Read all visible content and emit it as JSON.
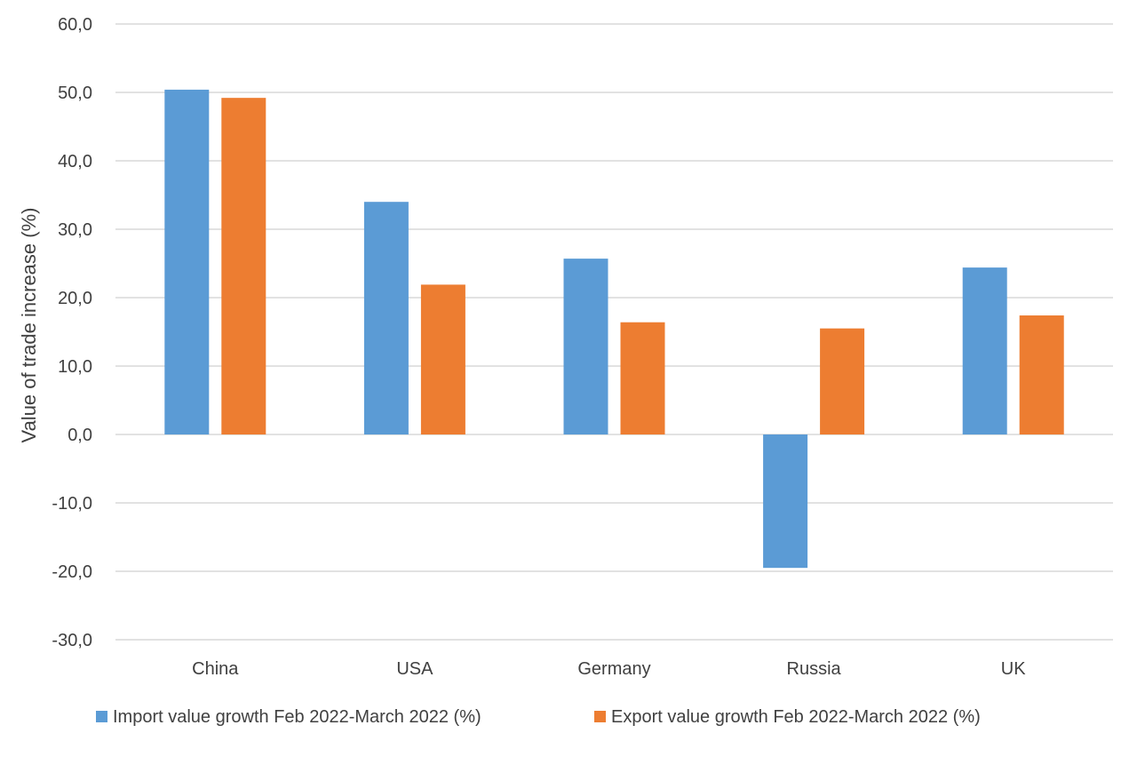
{
  "chart_data": {
    "type": "bar",
    "title": "",
    "xlabel": "",
    "ylabel": "Value of trade increase (%)",
    "ylim": [
      -30,
      60
    ],
    "yticks": [
      60,
      50,
      40,
      30,
      20,
      10,
      0,
      -10,
      -20,
      -30
    ],
    "ytick_labels": [
      "60,0",
      "50,0",
      "40,0",
      "30,0",
      "20,0",
      "10,0",
      "0,0",
      "-10,0",
      "-20,0",
      "-30,0"
    ],
    "grid": true,
    "legend_position": "bottom",
    "categories": [
      "China",
      "USA",
      "Germany",
      "Russia",
      "UK"
    ],
    "series": [
      {
        "name": "Import value growth Feb 2022-March 2022 (%)",
        "color": "#5b9bd5",
        "values": [
          50.4,
          34.0,
          25.7,
          -19.5,
          24.4
        ]
      },
      {
        "name": "Export value growth Feb 2022-March 2022 (%)",
        "color": "#ed7d31",
        "values": [
          49.2,
          21.9,
          16.4,
          15.5,
          17.4
        ]
      }
    ]
  }
}
